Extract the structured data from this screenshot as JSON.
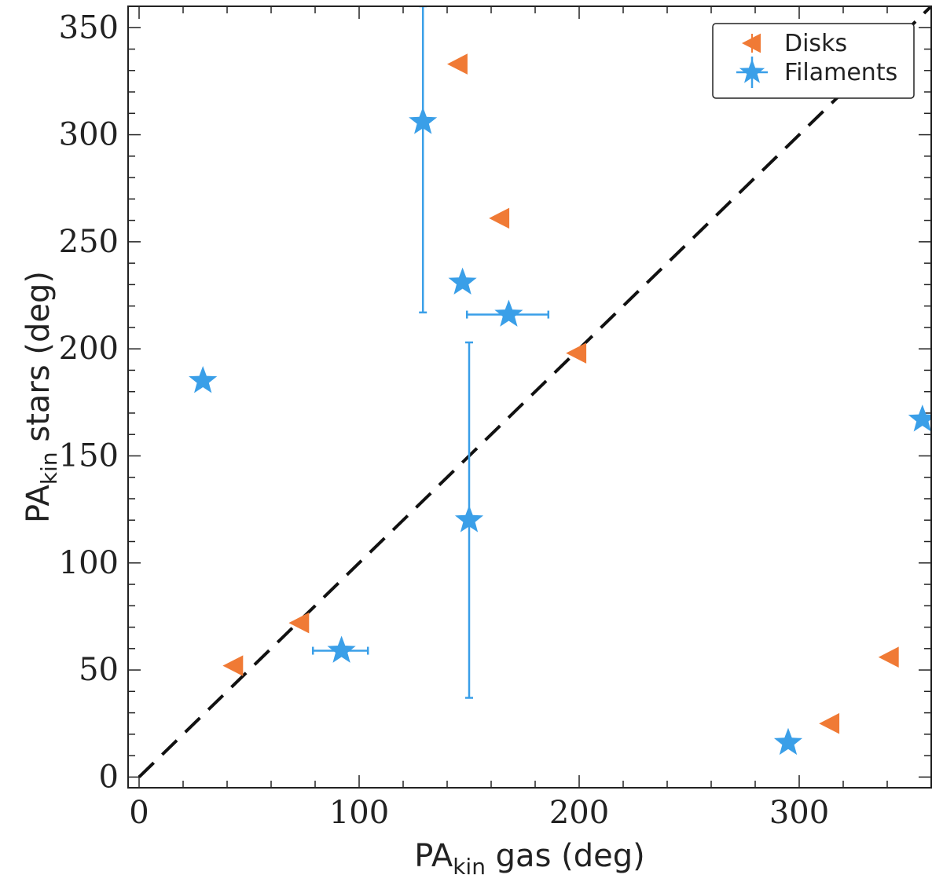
{
  "chart_data": {
    "type": "scatter",
    "xlim": [
      -5,
      360
    ],
    "ylim": [
      -5,
      360
    ],
    "x_ticks_major": [
      0,
      100,
      200,
      300
    ],
    "y_ticks_major": [
      0,
      50,
      100,
      150,
      200,
      250,
      300,
      350
    ],
    "minor_step": 20,
    "y_minor_step": 10,
    "xlabel": {
      "main": "PA",
      "sub": "kin",
      "rest": " gas (deg)"
    },
    "ylabel": {
      "main": "PA",
      "sub": "kin",
      "rest": " stars (deg)"
    },
    "reference_line": {
      "style": "dashed",
      "color": "#111111",
      "from": [
        0,
        0
      ],
      "to": [
        360,
        360
      ]
    },
    "legend": {
      "position": "top-right"
    },
    "series": [
      {
        "name": "Disks",
        "marker": "triangle-left",
        "color": "#f07a35",
        "points": [
          {
            "x": 145,
            "y": 333
          },
          {
            "x": 164,
            "y": 261
          },
          {
            "x": 199,
            "y": 198
          },
          {
            "x": 73,
            "y": 72
          },
          {
            "x": 43,
            "y": 52
          },
          {
            "x": 341,
            "y": 56
          },
          {
            "x": 314,
            "y": 25
          }
        ]
      },
      {
        "name": "Filaments",
        "marker": "star",
        "color": "#3a9fe8",
        "points": [
          {
            "x": 129,
            "y": 306,
            "yerr_low": 217,
            "yerr_high": 360
          },
          {
            "x": 147,
            "y": 231
          },
          {
            "x": 168,
            "y": 216,
            "xerr_low": 149,
            "xerr_high": 186
          },
          {
            "x": 29,
            "y": 185
          },
          {
            "x": 150,
            "y": 120,
            "yerr_low": 37,
            "yerr_high": 203
          },
          {
            "x": 92,
            "y": 59,
            "xerr_low": 79,
            "xerr_high": 104
          },
          {
            "x": 295,
            "y": 16
          },
          {
            "x": 356,
            "y": 167
          }
        ]
      }
    ]
  }
}
